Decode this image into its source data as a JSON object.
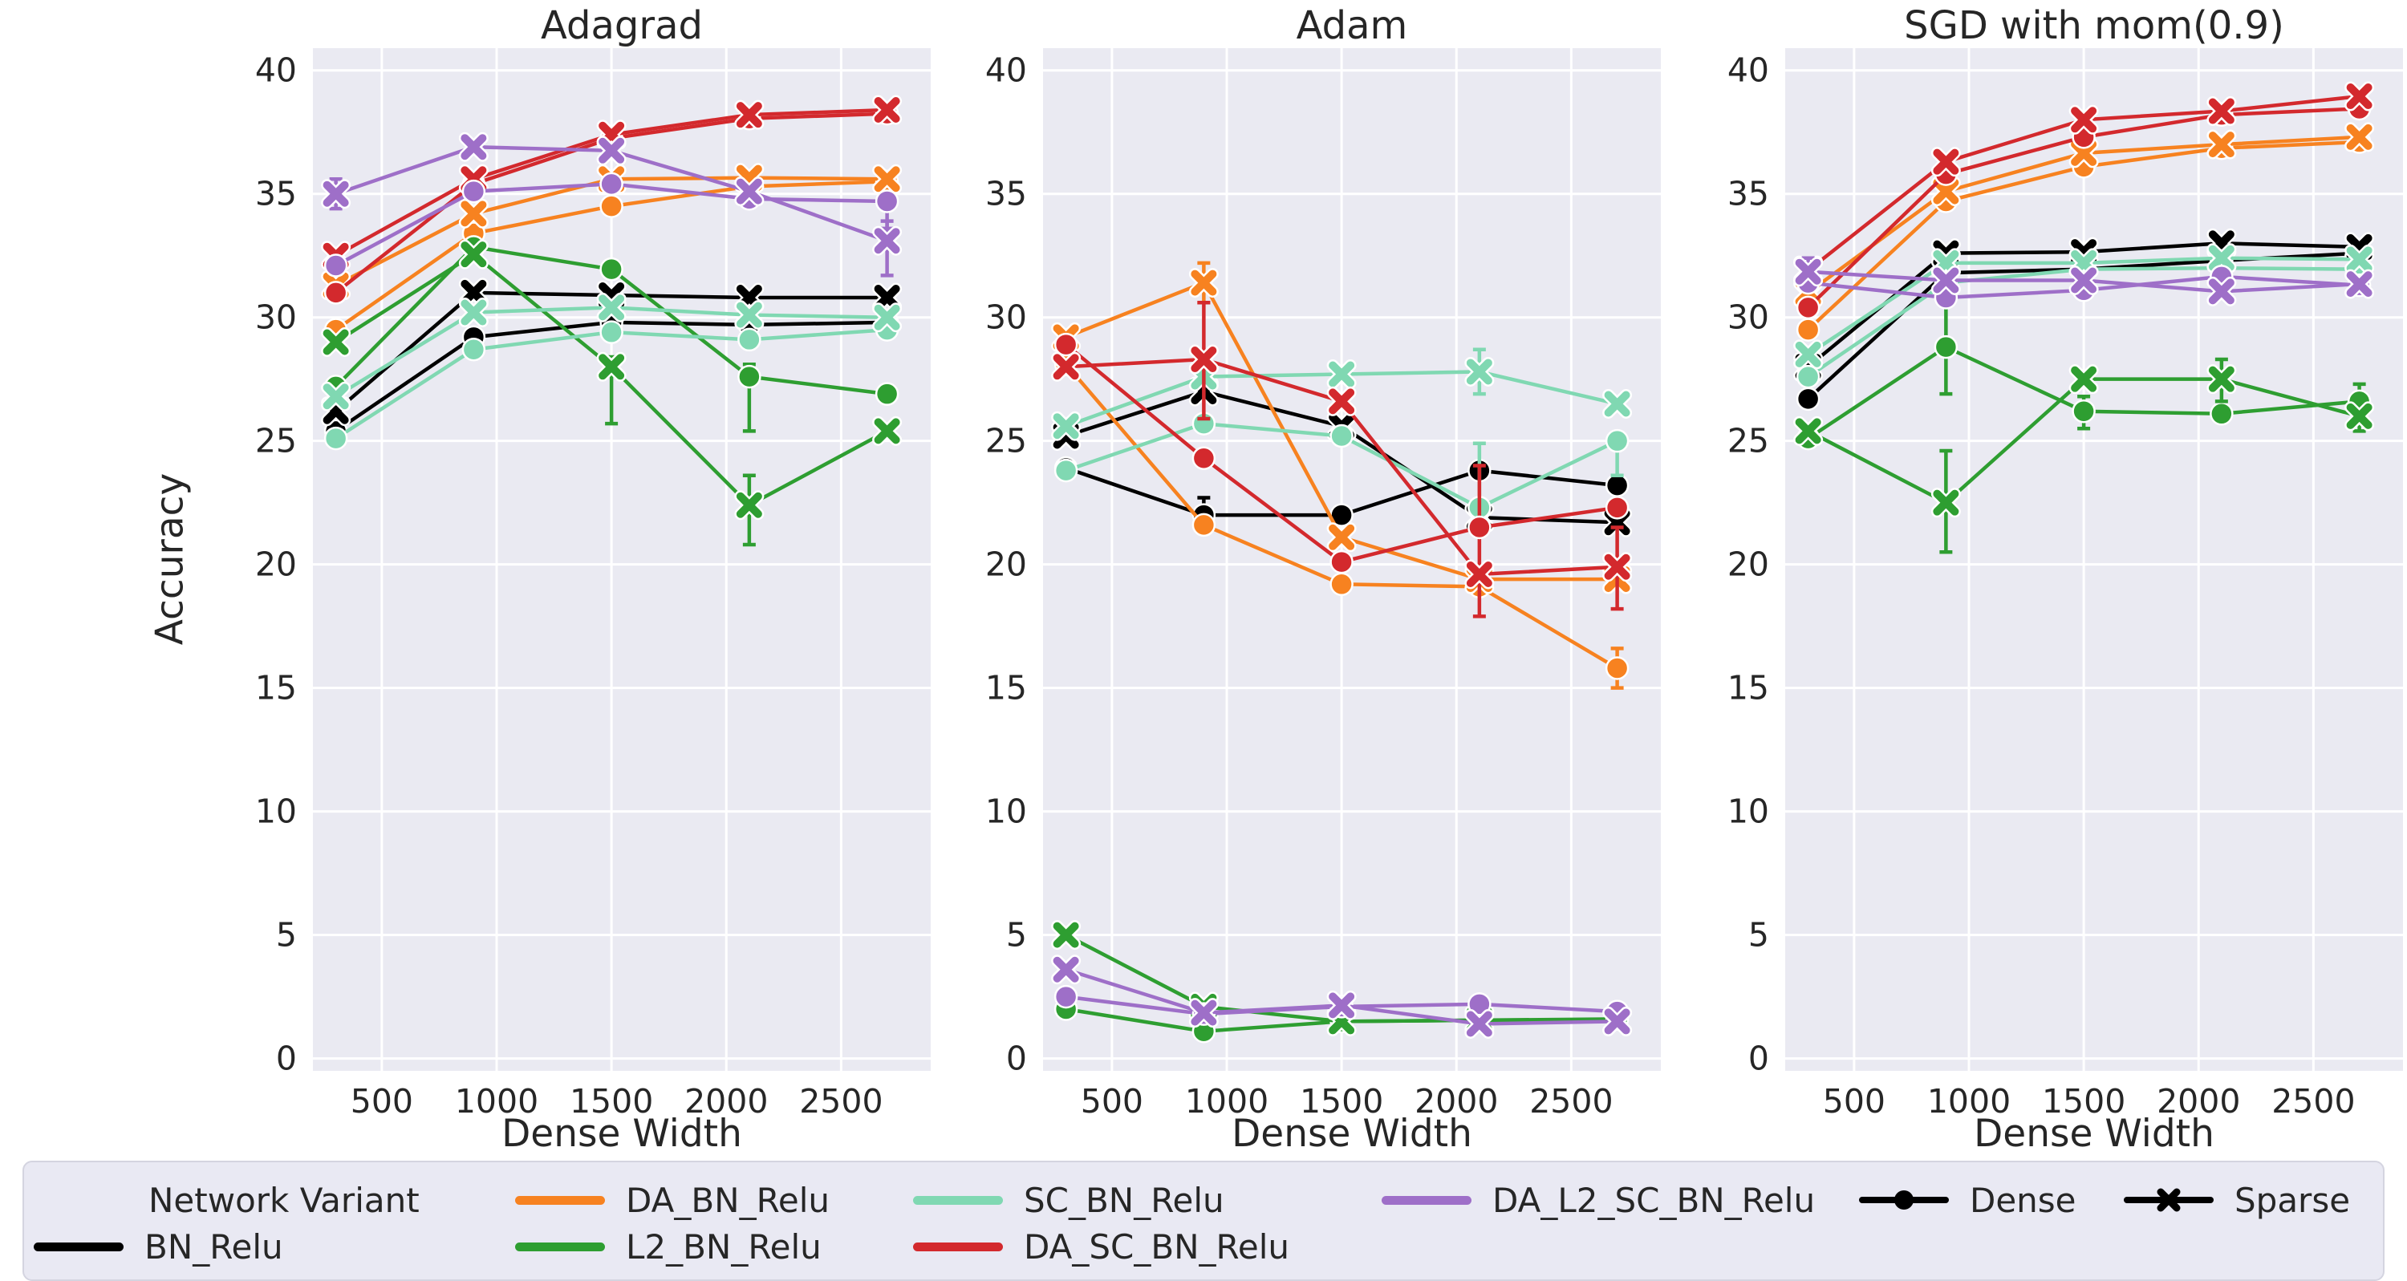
{
  "figure": {
    "background": "#ffffff",
    "panel_background": "#eaeaf2",
    "grid_color": "#ffffff",
    "text_color": "#262626"
  },
  "legend": {
    "title": "Network Variant",
    "dense_label": "Dense",
    "sparse_label": "Sparse",
    "marker_color": "#000000"
  },
  "chart_data": {
    "type": "line",
    "title": "",
    "xlabel": "Dense Width",
    "ylabel": "Accuracy",
    "x": [
      300,
      900,
      1500,
      2100,
      2700
    ],
    "x_ticks": [
      500,
      1000,
      1500,
      2000,
      2500
    ],
    "y_ticks": [
      0,
      5,
      10,
      15,
      20,
      25,
      30,
      35,
      40
    ],
    "x_range": [
      200,
      2890
    ],
    "y_range": [
      -0.5,
      40.9
    ],
    "grid": true,
    "legend_position": "bottom",
    "styles": [
      {
        "key": "dense",
        "label": "Dense",
        "marker": "circle"
      },
      {
        "key": "sparse",
        "label": "Sparse",
        "marker": "x"
      }
    ],
    "variants": [
      {
        "key": "BN_Relu",
        "label": "BN_Relu",
        "color": "#000000"
      },
      {
        "key": "DA_BN_Relu",
        "label": "DA_BN_Relu",
        "color": "#f78220"
      },
      {
        "key": "L2_BN_Relu",
        "label": "L2_BN_Relu",
        "color": "#2e9e31"
      },
      {
        "key": "SC_BN_Relu",
        "label": "SC_BN_Relu",
        "color": "#80d8b2"
      },
      {
        "key": "DA_SC_BN_Relu",
        "label": "DA_SC_BN_Relu",
        "color": "#d3292d"
      },
      {
        "key": "DA_L2_SC_BN_Relu",
        "label": "DA_L2_SC_BN_Relu",
        "color": "#9e6fc8"
      }
    ],
    "panels": [
      {
        "title": "Adagrad",
        "series": [
          {
            "variant": "BN_Relu",
            "style": "dense",
            "values": [
              25.4,
              29.2,
              29.8,
              29.7,
              29.8
            ]
          },
          {
            "variant": "BN_Relu",
            "style": "sparse",
            "values": [
              26.2,
              31.0,
              30.9,
              30.8,
              30.8
            ]
          },
          {
            "variant": "DA_BN_Relu",
            "style": "dense",
            "values": [
              29.5,
              33.4,
              34.5,
              35.3,
              35.5
            ]
          },
          {
            "variant": "DA_BN_Relu",
            "style": "sparse",
            "values": [
              31.3,
              34.2,
              35.6,
              35.65,
              35.6
            ]
          },
          {
            "variant": "L2_BN_Relu",
            "style": "dense",
            "values": [
              27.2,
              32.85,
              31.95,
              27.6,
              26.9
            ]
          },
          {
            "variant": "L2_BN_Relu",
            "style": "sparse",
            "values": [
              29.0,
              32.55,
              28.0,
              22.4,
              25.4
            ]
          },
          {
            "variant": "SC_BN_Relu",
            "style": "dense",
            "values": [
              25.1,
              28.7,
              29.4,
              29.1,
              29.5
            ]
          },
          {
            "variant": "SC_BN_Relu",
            "style": "sparse",
            "values": [
              26.8,
              30.2,
              30.4,
              30.1,
              30.0
            ]
          },
          {
            "variant": "DA_SC_BN_Relu",
            "style": "dense",
            "values": [
              31.0,
              35.4,
              37.25,
              38.05,
              38.25
            ]
          },
          {
            "variant": "DA_SC_BN_Relu",
            "style": "sparse",
            "values": [
              32.5,
              35.6,
              37.4,
              38.2,
              38.4
            ]
          },
          {
            "variant": "DA_L2_SC_BN_Relu",
            "style": "dense",
            "values": [
              32.1,
              35.1,
              35.4,
              34.8,
              34.7
            ]
          },
          {
            "variant": "DA_L2_SC_BN_Relu",
            "style": "sparse",
            "values": [
              35.0,
              36.9,
              36.75,
              35.1,
              33.1
            ]
          }
        ],
        "error_bars": [
          {
            "variant": "DA_L2_SC_BN_Relu",
            "style": "sparse",
            "i": 0,
            "lo": 34.4,
            "hi": 35.6
          },
          {
            "variant": "L2_BN_Relu",
            "style": "sparse",
            "i": 2,
            "lo": 25.7,
            "hi": 28.4
          },
          {
            "variant": "L2_BN_Relu",
            "style": "dense",
            "i": 3,
            "lo": 25.4,
            "hi": 28.1
          },
          {
            "variant": "L2_BN_Relu",
            "style": "sparse",
            "i": 3,
            "lo": 20.8,
            "hi": 23.6
          },
          {
            "variant": "DA_L2_SC_BN_Relu",
            "style": "dense",
            "i": 4,
            "lo": 33.6,
            "hi": 35.0
          },
          {
            "variant": "DA_L2_SC_BN_Relu",
            "style": "sparse",
            "i": 4,
            "lo": 31.7,
            "hi": 33.9
          }
        ]
      },
      {
        "title": "Adam",
        "series": [
          {
            "variant": "BN_Relu",
            "style": "dense",
            "values": [
              23.9,
              22.0,
              22.0,
              23.8,
              23.2
            ]
          },
          {
            "variant": "BN_Relu",
            "style": "sparse",
            "values": [
              25.2,
              27.0,
              25.6,
              21.9,
              21.7
            ]
          },
          {
            "variant": "DA_BN_Relu",
            "style": "dense",
            "values": [
              28.1,
              21.6,
              19.2,
              19.1,
              15.8
            ]
          },
          {
            "variant": "DA_BN_Relu",
            "style": "sparse",
            "values": [
              29.2,
              31.4,
              21.1,
              19.4,
              19.4
            ]
          },
          {
            "variant": "L2_BN_Relu",
            "style": "dense",
            "values": [
              2.0,
              1.1,
              1.5,
              1.55,
              1.6
            ]
          },
          {
            "variant": "L2_BN_Relu",
            "style": "sparse",
            "values": [
              5.0,
              2.1,
              1.5,
              1.55,
              1.5
            ]
          },
          {
            "variant": "SC_BN_Relu",
            "style": "dense",
            "values": [
              23.8,
              25.7,
              25.2,
              22.3,
              25.0
            ]
          },
          {
            "variant": "SC_BN_Relu",
            "style": "sparse",
            "values": [
              25.6,
              27.6,
              27.7,
              27.8,
              26.5
            ]
          },
          {
            "variant": "DA_SC_BN_Relu",
            "style": "dense",
            "values": [
              28.9,
              24.3,
              20.1,
              21.5,
              22.3
            ]
          },
          {
            "variant": "DA_SC_BN_Relu",
            "style": "sparse",
            "values": [
              28.0,
              28.3,
              26.6,
              19.6,
              19.9
            ]
          },
          {
            "variant": "DA_L2_SC_BN_Relu",
            "style": "dense",
            "values": [
              2.5,
              1.8,
              2.1,
              2.2,
              1.9
            ]
          },
          {
            "variant": "DA_L2_SC_BN_Relu",
            "style": "sparse",
            "values": [
              3.6,
              1.85,
              2.15,
              1.4,
              1.5
            ]
          }
        ],
        "error_bars": [
          {
            "variant": "DA_BN_Relu",
            "style": "sparse",
            "i": 1,
            "lo": 30.6,
            "hi": 32.2
          },
          {
            "variant": "DA_SC_BN_Relu",
            "style": "sparse",
            "i": 1,
            "lo": 25.9,
            "hi": 30.6
          },
          {
            "variant": "BN_Relu",
            "style": "dense",
            "i": 1,
            "lo": 21.4,
            "hi": 22.7
          },
          {
            "variant": "DA_SC_BN_Relu",
            "style": "dense",
            "i": 3,
            "lo": 17.9,
            "hi": 24.0
          },
          {
            "variant": "SC_BN_Relu",
            "style": "dense",
            "i": 3,
            "lo": 21.5,
            "hi": 24.9
          },
          {
            "variant": "SC_BN_Relu",
            "style": "sparse",
            "i": 3,
            "lo": 26.9,
            "hi": 28.7
          },
          {
            "variant": "DA_SC_BN_Relu",
            "style": "sparse",
            "i": 4,
            "lo": 18.2,
            "hi": 21.5
          },
          {
            "variant": "DA_BN_Relu",
            "style": "dense",
            "i": 4,
            "lo": 15.0,
            "hi": 16.6
          },
          {
            "variant": "SC_BN_Relu",
            "style": "dense",
            "i": 4,
            "lo": 23.6,
            "hi": 25.1
          }
        ]
      },
      {
        "title": "SGD with mom(0.9)",
        "series": [
          {
            "variant": "BN_Relu",
            "style": "dense",
            "values": [
              26.7,
              31.8,
              31.95,
              32.3,
              32.6
            ]
          },
          {
            "variant": "BN_Relu",
            "style": "sparse",
            "values": [
              28.0,
              32.6,
              32.65,
              33.0,
              32.85
            ]
          },
          {
            "variant": "DA_BN_Relu",
            "style": "dense",
            "values": [
              29.5,
              34.7,
              36.1,
              36.85,
              37.1
            ]
          },
          {
            "variant": "DA_BN_Relu",
            "style": "sparse",
            "values": [
              31.0,
              35.1,
              36.65,
              37.0,
              37.3
            ]
          },
          {
            "variant": "L2_BN_Relu",
            "style": "dense",
            "values": [
              25.1,
              28.8,
              26.2,
              26.1,
              26.6
            ]
          },
          {
            "variant": "L2_BN_Relu",
            "style": "sparse",
            "values": [
              25.4,
              22.5,
              27.5,
              27.5,
              26.0
            ]
          },
          {
            "variant": "SC_BN_Relu",
            "style": "dense",
            "values": [
              27.6,
              31.4,
              31.95,
              32.0,
              31.95
            ]
          },
          {
            "variant": "SC_BN_Relu",
            "style": "sparse",
            "values": [
              28.5,
              32.2,
              32.2,
              32.4,
              32.35
            ]
          },
          {
            "variant": "DA_SC_BN_Relu",
            "style": "dense",
            "values": [
              30.4,
              35.8,
              37.3,
              38.2,
              38.45
            ]
          },
          {
            "variant": "DA_SC_BN_Relu",
            "style": "sparse",
            "values": [
              31.9,
              36.3,
              38.0,
              38.35,
              38.95
            ]
          },
          {
            "variant": "DA_L2_SC_BN_Relu",
            "style": "dense",
            "values": [
              31.4,
              30.8,
              31.1,
              31.65,
              31.3
            ]
          },
          {
            "variant": "DA_L2_SC_BN_Relu",
            "style": "sparse",
            "values": [
              31.85,
              31.5,
              31.5,
              31.05,
              31.35
            ]
          }
        ],
        "error_bars": [
          {
            "variant": "L2_BN_Relu",
            "style": "dense",
            "i": 1,
            "lo": 26.9,
            "hi": 30.6
          },
          {
            "variant": "L2_BN_Relu",
            "style": "sparse",
            "i": 1,
            "lo": 20.5,
            "hi": 24.6
          },
          {
            "variant": "DA_L2_SC_BN_Relu",
            "style": "sparse",
            "i": 0,
            "lo": 31.3,
            "hi": 32.4
          },
          {
            "variant": "L2_BN_Relu",
            "style": "dense",
            "i": 2,
            "lo": 25.5,
            "hi": 26.8
          },
          {
            "variant": "L2_BN_Relu",
            "style": "sparse",
            "i": 3,
            "lo": 26.6,
            "hi": 28.3
          },
          {
            "variant": "L2_BN_Relu",
            "style": "dense",
            "i": 4,
            "lo": 25.9,
            "hi": 27.3
          },
          {
            "variant": "L2_BN_Relu",
            "style": "sparse",
            "i": 4,
            "lo": 25.4,
            "hi": 26.6
          }
        ]
      }
    ]
  }
}
